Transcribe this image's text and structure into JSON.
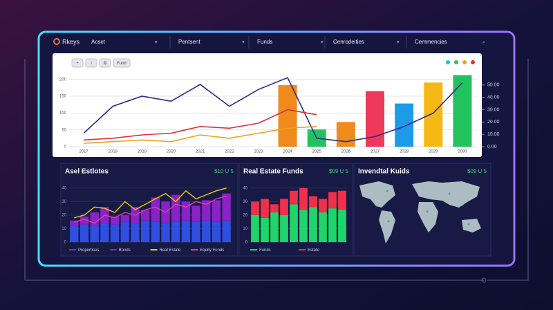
{
  "nav": {
    "logo": "Rkeys",
    "items": [
      "Acset",
      "Pentsent",
      "Funds",
      "Cenrodeities",
      "Cemmencies"
    ]
  },
  "toolbar": [
    "+",
    "i",
    "⧉",
    "Fund"
  ],
  "main_chart": {
    "type": "combo",
    "categories": [
      "2017",
      "2018",
      "2019",
      "2020",
      "2021",
      "2022",
      "2023",
      "2024",
      "2025",
      "2026",
      "2027",
      "2028",
      "2029",
      "2030"
    ],
    "ylim": [
      0,
      220
    ],
    "yticks": [
      0,
      50,
      100,
      150,
      200
    ],
    "y2lim": [
      0,
      60
    ],
    "y2ticks": [
      {
        "value": 0,
        "label": "0.00"
      },
      {
        "value": 10,
        "label": "10.00"
      },
      {
        "value": 20,
        "label": "20.00"
      },
      {
        "value": 30,
        "label": "30.00"
      },
      {
        "value": 40,
        "label": "40.00"
      },
      {
        "value": 50,
        "label": "50.00"
      }
    ],
    "grid": true,
    "series": [
      {
        "color": "#2b2a8c",
        "values": [
          40,
          120,
          150,
          135,
          185,
          120,
          170,
          205,
          25,
          15,
          30,
          60,
          100,
          190
        ]
      },
      {
        "color": "#d8323a",
        "values": [
          20,
          25,
          35,
          40,
          60,
          55,
          70,
          110,
          95,
          null,
          null,
          null,
          null,
          null
        ]
      },
      {
        "color": "#f0a020",
        "values": [
          10,
          15,
          20,
          15,
          35,
          25,
          40,
          55,
          60,
          null,
          null,
          null,
          null,
          null
        ]
      }
    ],
    "bars": {
      "axis": "y2",
      "values": [
        null,
        null,
        null,
        null,
        null,
        null,
        null,
        50,
        14,
        20,
        45,
        35,
        52,
        58
      ],
      "colors": [
        "#f08a1c",
        "#f08a1c",
        "#f08a1c",
        "#f08a1c",
        "#f08a1c",
        "#f08a1c",
        "#f08a1c",
        "#f08a1c",
        "#22c35e",
        "#f08a1c",
        "#f0385a",
        "#1e9be8",
        "#f5b916",
        "#22c35e"
      ]
    }
  },
  "panels": [
    {
      "title": "Asel Estlotes",
      "value": "$10 U 5",
      "type": "stacked-bar-line",
      "ylim": [
        0,
        45
      ],
      "yticks": [
        0,
        10,
        20,
        30,
        40
      ],
      "categories": [
        null,
        null,
        null,
        null,
        null,
        null,
        null,
        null,
        null,
        null,
        null,
        null,
        null,
        null,
        null,
        null
      ],
      "series": [
        {
          "name": "Propertises",
          "color": "#2f4fe0",
          "kind": "bar",
          "values": [
            12,
            13,
            12,
            14,
            13,
            15,
            14,
            16,
            15,
            14,
            15,
            16,
            15,
            16,
            15,
            16
          ]
        },
        {
          "name": "Bonds",
          "color": "#8a22c8",
          "kind": "bar",
          "values": [
            4,
            6,
            10,
            12,
            6,
            5,
            12,
            8,
            18,
            16,
            20,
            14,
            12,
            15,
            16,
            20
          ]
        },
        {
          "name": "Real Estate",
          "color": "#f5c518",
          "kind": "line",
          "values": [
            18,
            20,
            26,
            25,
            22,
            30,
            24,
            28,
            32,
            36,
            30,
            38,
            32,
            35,
            38,
            40
          ]
        },
        {
          "name": "Equity Funds",
          "color": "#e040a0",
          "kind": "line",
          "values": [
            15,
            17,
            14,
            20,
            18,
            22,
            20,
            24,
            26,
            22,
            28,
            26,
            30,
            28,
            32,
            34
          ]
        }
      ]
    },
    {
      "title": "Real Estate Funds",
      "value": "$09 U 5",
      "type": "stacked-bar",
      "ylim": [
        0,
        45
      ],
      "yticks": [
        0,
        10,
        20,
        30,
        40
      ],
      "categories": [
        null,
        null,
        null,
        null,
        null,
        null,
        null,
        null,
        null,
        null
      ],
      "series": [
        {
          "name": "Funds",
          "color": "#1fd46a",
          "values": [
            20,
            18,
            22,
            20,
            28,
            24,
            26,
            22,
            25,
            24
          ]
        },
        {
          "name": "Estate",
          "color": "#f0304a",
          "values": [
            10,
            14,
            6,
            12,
            10,
            16,
            8,
            10,
            12,
            14
          ]
        }
      ]
    },
    {
      "title": "Invendtal Kuids",
      "value": "$09 U 5",
      "type": "map"
    }
  ]
}
